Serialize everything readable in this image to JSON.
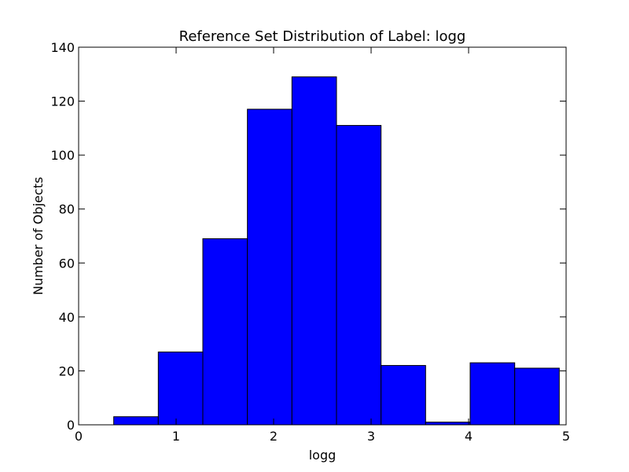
{
  "chart_data": {
    "type": "bar",
    "title": "Reference Set Distribution of Label: logg",
    "xlabel": "logg",
    "ylabel": "Number of Objects",
    "xlim": [
      0,
      5
    ],
    "ylim": [
      0,
      140
    ],
    "xticks": [
      "0",
      "1",
      "2",
      "3",
      "4",
      "5"
    ],
    "yticks": [
      "0",
      "20",
      "40",
      "60",
      "80",
      "100",
      "120",
      "140"
    ],
    "bar_color": "#0000ff",
    "bin_edges": [
      0.36,
      0.817,
      1.274,
      1.731,
      2.188,
      2.645,
      3.102,
      3.559,
      4.016,
      4.473,
      4.93
    ],
    "values": [
      3,
      27,
      69,
      117,
      129,
      111,
      22,
      1,
      23,
      21
    ],
    "grid": false,
    "legend": "none"
  }
}
